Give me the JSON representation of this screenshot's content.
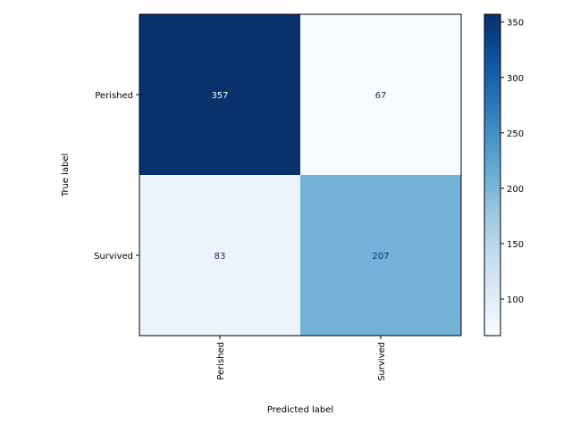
{
  "chart_data": {
    "type": "heatmap",
    "row_labels": [
      "Perished",
      "Survived"
    ],
    "col_labels": [
      "Perished",
      "Survived"
    ],
    "values": [
      [
        357,
        67
      ],
      [
        83,
        207
      ]
    ],
    "xlabel": "Predicted label",
    "ylabel": "True label",
    "colormap": "Blues",
    "colorbar": {
      "min": 67,
      "max": 357,
      "ticks": [
        100,
        150,
        200,
        250,
        300,
        350
      ]
    },
    "colors": {
      "light_text": "#ffffff",
      "dark_text": "#08306b"
    }
  }
}
